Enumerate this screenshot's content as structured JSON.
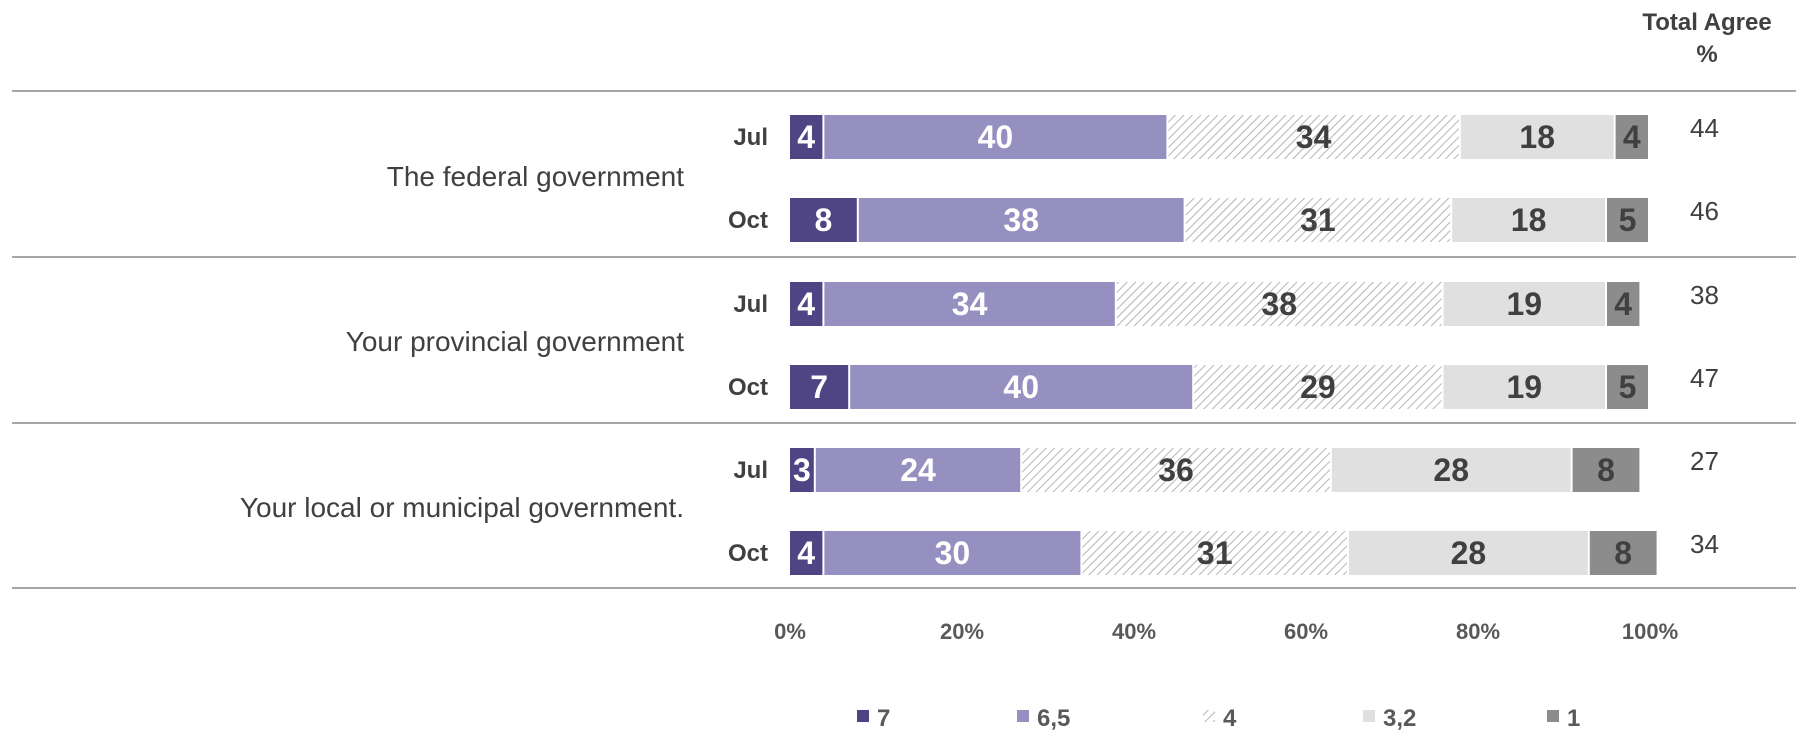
{
  "chart_data": {
    "type": "bar",
    "orientation": "horizontal",
    "stacked": true,
    "header": {
      "line1": "Total Agree",
      "line2": "%"
    },
    "xlim": [
      0,
      100
    ],
    "x_ticks": [
      "0%",
      "20%",
      "40%",
      "60%",
      "80%",
      "100%"
    ],
    "legend_placement": "bottom",
    "categories": [
      {
        "group": "The federal government",
        "period": "Jul",
        "total_agree": "44"
      },
      {
        "group": "The federal government",
        "period": "Oct",
        "total_agree": "46"
      },
      {
        "group": "Your provincial government",
        "period": "Jul",
        "total_agree": "38"
      },
      {
        "group": "Your provincial government",
        "period": "Oct",
        "total_agree": "47"
      },
      {
        "group": "Your local or municipal government.",
        "period": "Jul",
        "total_agree": "27"
      },
      {
        "group": "Your local or municipal government.",
        "period": "Oct",
        "total_agree": "34"
      }
    ],
    "groups": [
      "The federal government",
      "Your provincial government",
      "Your local or municipal government."
    ],
    "series": [
      {
        "name": "7",
        "color": "#4f4585",
        "label_color": "#ffffff",
        "pattern": false,
        "values": [
          4,
          8,
          4,
          7,
          3,
          4
        ]
      },
      {
        "name": "6,5",
        "color": "#9590c0",
        "label_color": "#ffffff",
        "pattern": false,
        "values": [
          40,
          38,
          34,
          40,
          24,
          30
        ]
      },
      {
        "name": "4",
        "color": "#ffffff",
        "label_color": "#404040",
        "pattern": true,
        "values": [
          34,
          31,
          38,
          29,
          36,
          31
        ]
      },
      {
        "name": "3,2",
        "color": "#e0e0e0",
        "label_color": "#404040",
        "pattern": false,
        "values": [
          18,
          18,
          19,
          19,
          28,
          28
        ]
      },
      {
        "name": "1",
        "color": "#8c8c8c",
        "label_color": "#404040",
        "pattern": false,
        "values": [
          4,
          5,
          4,
          5,
          8,
          8
        ]
      }
    ]
  }
}
